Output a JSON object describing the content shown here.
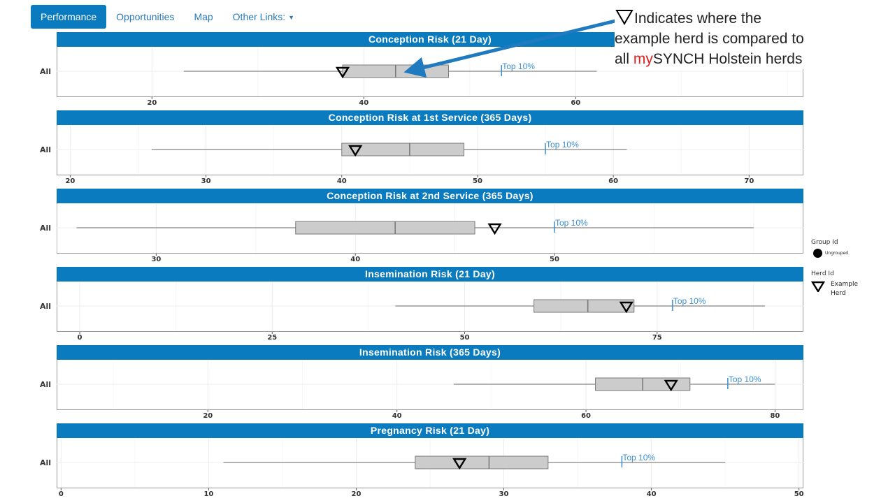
{
  "nav": {
    "items": [
      {
        "label": "Performance",
        "active": true
      },
      {
        "label": "Opportunities",
        "active": false
      },
      {
        "label": "Map",
        "active": false
      },
      {
        "label": "Other Links:",
        "active": false,
        "dropdown": true
      }
    ]
  },
  "annotation": {
    "line1": "Indicates where the",
    "line2": "example herd is compared to",
    "line3_prefix": "all ",
    "line3_red": "my",
    "line3_rest": "SYNCH Holstein herds",
    "icon": "triangle-down-outline-icon"
  },
  "legend": {
    "group_title": "Group Id",
    "group_item": "Ungrouped",
    "herd_title": "Herd Id",
    "herd_item_line1": "Example",
    "herd_item_line2": "Herd"
  },
  "colors": {
    "accent": "#0b7bbf",
    "box_fill": "#cccccc",
    "top10": "#3b8fd0",
    "annotation_red": "#e02020"
  },
  "chart_data": [
    {
      "type": "boxplot",
      "title": "Conception Risk (21 Day)",
      "category": "All",
      "xlim": [
        11,
        81.5
      ],
      "ticks": [
        20,
        40,
        60
      ],
      "whisker_low": 23,
      "q1": 38,
      "median": 43,
      "q3": 48,
      "whisker_high": 62,
      "herd": 38,
      "top10": 53,
      "top10_label": "Top 10%"
    },
    {
      "type": "boxplot",
      "title": "Conception Risk at 1st Service (365 Days)",
      "category": "All",
      "xlim": [
        19,
        74
      ],
      "ticks": [
        20,
        30,
        40,
        50,
        60,
        70
      ],
      "whisker_low": 26,
      "q1": 40,
      "median": 45,
      "q3": 49,
      "whisker_high": 61,
      "herd": 41,
      "top10": 55,
      "top10_label": "Top 10%"
    },
    {
      "type": "boxplot",
      "title": "Conception Risk at 2nd Service (365 Days)",
      "category": "All",
      "xlim": [
        25,
        62.5
      ],
      "ticks": [
        30,
        40,
        50
      ],
      "whisker_low": 26,
      "q1": 37,
      "median": 42,
      "q3": 46,
      "whisker_high": 60,
      "herd": 47,
      "top10": 50,
      "top10_label": "Top 10%"
    },
    {
      "type": "boxplot",
      "title": "Insemination Risk (21 Day)",
      "category": "All",
      "xlim": [
        -3,
        94
      ],
      "ticks": [
        0,
        25,
        50,
        75
      ],
      "whisker_low": 41,
      "q1": 59,
      "median": 66,
      "q3": 72,
      "whisker_high": 89,
      "herd": 71,
      "top10": 77,
      "top10_label": "Top 10%"
    },
    {
      "type": "boxplot",
      "title": "Insemination Risk (365 Days)",
      "category": "All",
      "xlim": [
        4,
        83
      ],
      "ticks": [
        20,
        40,
        60,
        80
      ],
      "whisker_low": 46,
      "q1": 61,
      "median": 66,
      "q3": 71,
      "whisker_high": 80,
      "herd": 69,
      "top10": 75,
      "top10_label": "Top 10%"
    },
    {
      "type": "boxplot",
      "title": "Pregnancy Risk (21 Day)",
      "category": "All",
      "xlim": [
        -0.3,
        50.3
      ],
      "ticks": [
        0,
        10,
        20,
        30,
        40,
        50
      ],
      "whisker_low": 11,
      "q1": 24,
      "median": 29,
      "q3": 33,
      "whisker_high": 45,
      "herd": 27,
      "top10": 38,
      "top10_label": "Top 10%"
    }
  ]
}
